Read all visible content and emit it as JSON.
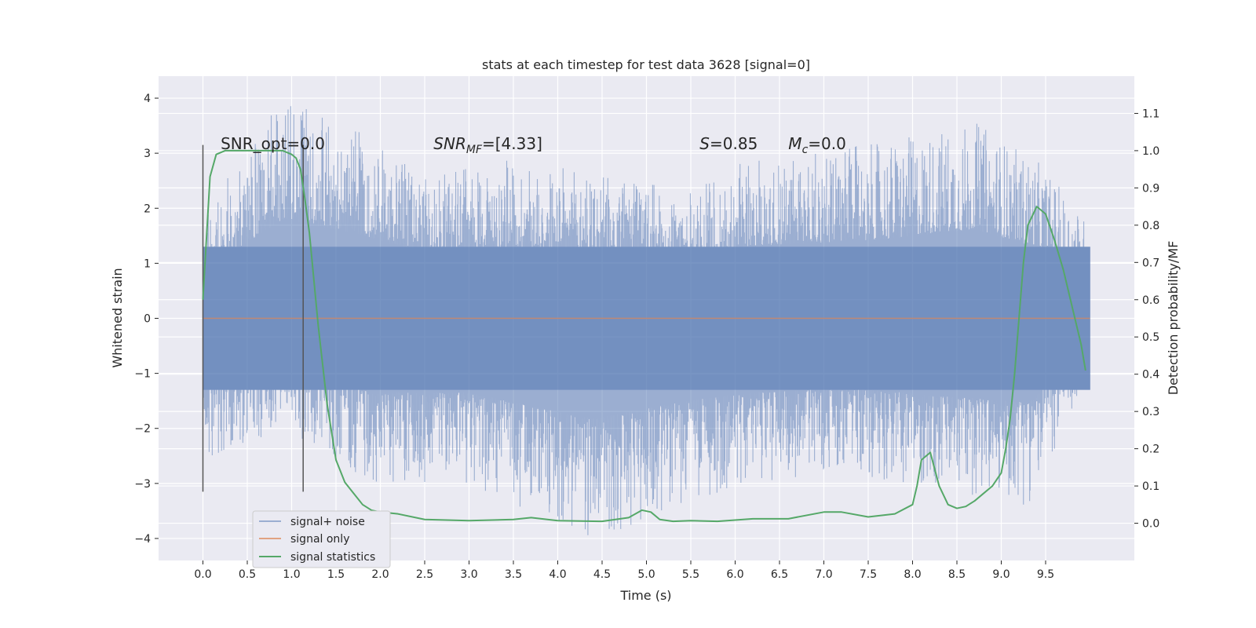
{
  "chart_data": {
    "type": "line",
    "title": "stats at each timestep for test data 3628 [signal=0]",
    "xlabel": "Time (s)",
    "ylabel_left": "Whitened strain",
    "ylabel_right": "Detection probability/MF",
    "xlim": [
      -0.5,
      10.5
    ],
    "ylim_left": [
      -4.4,
      4.4
    ],
    "ylim_right": [
      -0.1,
      1.2
    ],
    "grid": true,
    "legend_position": "lower-left",
    "x_ticks": [
      "0.0",
      "0.5",
      "1.0",
      "1.5",
      "2.0",
      "2.5",
      "3.0",
      "3.5",
      "4.0",
      "4.5",
      "5.0",
      "5.5",
      "6.0",
      "6.5",
      "7.0",
      "7.5",
      "8.0",
      "8.5",
      "9.0",
      "9.5"
    ],
    "left_ticks": [
      "4",
      "3",
      "2",
      "1",
      "0",
      "−1",
      "−2",
      "−3",
      "−4"
    ],
    "right_ticks": [
      "1.1",
      "1.0",
      "0.9",
      "0.8",
      "0.7",
      "0.6",
      "0.5",
      "0.4",
      "0.3",
      "0.2",
      "0.1",
      "0.0"
    ],
    "annotations": [
      {
        "text": "SNR_opt=0.0",
        "x": 0.2,
        "y_right": 1.0
      },
      {
        "text_parts": [
          "SNR",
          "MF",
          "=[4.33]"
        ],
        "x": 2.6,
        "y_right": 1.0
      },
      {
        "text_parts": [
          "S",
          "=0.85"
        ],
        "x": 5.6,
        "y_right": 1.0
      },
      {
        "text_parts": [
          "M",
          "c",
          "=0.0"
        ],
        "x": 6.6,
        "y_right": 1.0
      }
    ],
    "vertical_lines": [
      0.0,
      1.13
    ],
    "vertical_line_range_left": [
      -3.15,
      3.15
    ],
    "series": [
      {
        "name": "signal+ noise",
        "color": "#4c72b0",
        "axis": "left",
        "x_range": [
          0.0,
          10.0
        ],
        "band_1sigma": [
          -1.3,
          1.3
        ],
        "envelope_upper": [
          [
            0.0,
            1.8
          ],
          [
            0.3,
            2.6
          ],
          [
            0.9,
            4.0
          ],
          [
            1.75,
            3.4
          ],
          [
            2.5,
            2.6
          ],
          [
            3.5,
            2.9
          ],
          [
            5.5,
            2.3
          ],
          [
            6.15,
            2.9
          ],
          [
            7.7,
            3.2
          ],
          [
            8.7,
            3.6
          ],
          [
            9.45,
            2.8
          ],
          [
            10.0,
            1.7
          ]
        ],
        "envelope_lower": [
          [
            0.0,
            -1.5
          ],
          [
            0.05,
            -2.6
          ],
          [
            0.9,
            -2.0
          ],
          [
            1.9,
            -3.0
          ],
          [
            3.0,
            -3.0
          ],
          [
            4.4,
            -4.05
          ],
          [
            5.5,
            -3.3
          ],
          [
            6.2,
            -3.0
          ],
          [
            7.2,
            -2.8
          ],
          [
            7.9,
            -3.0
          ],
          [
            9.3,
            -3.4
          ],
          [
            10.0,
            -1.1
          ]
        ]
      },
      {
        "name": "signal only",
        "color": "#dd8452",
        "axis": "left",
        "x": [
          0.0,
          10.0
        ],
        "y": [
          0.0,
          0.0
        ]
      },
      {
        "name": "signal statistics",
        "color": "#55a868",
        "axis": "right",
        "x": [
          0.0,
          0.08,
          0.15,
          0.25,
          0.4,
          0.6,
          0.8,
          0.9,
          1.0,
          1.05,
          1.1,
          1.15,
          1.2,
          1.3,
          1.4,
          1.5,
          1.6,
          1.7,
          1.8,
          1.9,
          2.0,
          2.2,
          2.5,
          3.0,
          3.5,
          3.7,
          4.0,
          4.5,
          4.8,
          4.95,
          5.05,
          5.15,
          5.3,
          5.5,
          5.8,
          6.2,
          6.6,
          7.0,
          7.2,
          7.5,
          7.8,
          8.0,
          8.05,
          8.1,
          8.2,
          8.3,
          8.4,
          8.5,
          8.6,
          8.7,
          8.8,
          8.9,
          9.0,
          9.05,
          9.1,
          9.15,
          9.2,
          9.25,
          9.3,
          9.4,
          9.5,
          9.6,
          9.7,
          9.8,
          9.9,
          9.95
        ],
        "y": [
          0.6,
          0.93,
          0.99,
          1.0,
          1.0,
          1.0,
          1.0,
          1.0,
          0.99,
          0.98,
          0.95,
          0.87,
          0.78,
          0.53,
          0.32,
          0.17,
          0.11,
          0.08,
          0.05,
          0.035,
          0.03,
          0.025,
          0.01,
          0.007,
          0.01,
          0.015,
          0.007,
          0.005,
          0.015,
          0.035,
          0.03,
          0.01,
          0.005,
          0.007,
          0.005,
          0.012,
          0.012,
          0.03,
          0.03,
          0.017,
          0.025,
          0.05,
          0.1,
          0.17,
          0.19,
          0.1,
          0.05,
          0.04,
          0.045,
          0.06,
          0.08,
          0.1,
          0.135,
          0.2,
          0.28,
          0.4,
          0.55,
          0.7,
          0.8,
          0.85,
          0.83,
          0.76,
          0.68,
          0.58,
          0.48,
          0.41
        ]
      }
    ]
  }
}
